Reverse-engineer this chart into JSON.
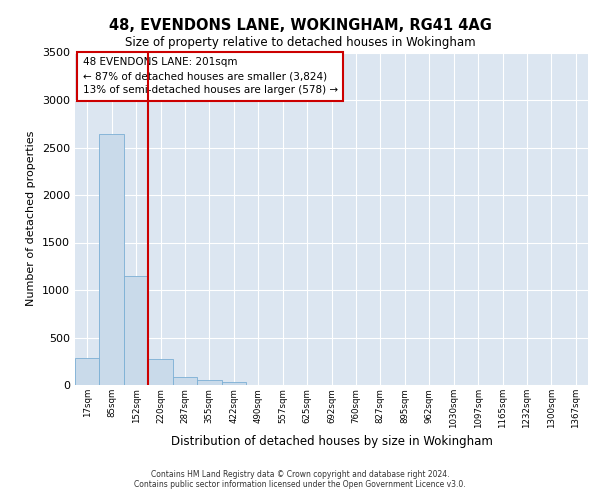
{
  "title": "48, EVENDONS LANE, WOKINGHAM, RG41 4AG",
  "subtitle": "Size of property relative to detached houses in Wokingham",
  "xlabel": "Distribution of detached houses by size in Wokingham",
  "ylabel": "Number of detached properties",
  "categories": [
    "17sqm",
    "85sqm",
    "152sqm",
    "220sqm",
    "287sqm",
    "355sqm",
    "422sqm",
    "490sqm",
    "557sqm",
    "625sqm",
    "692sqm",
    "760sqm",
    "827sqm",
    "895sqm",
    "962sqm",
    "1030sqm",
    "1097sqm",
    "1165sqm",
    "1232sqm",
    "1300sqm",
    "1367sqm"
  ],
  "values": [
    280,
    2640,
    1150,
    275,
    85,
    50,
    30,
    0,
    0,
    0,
    0,
    0,
    0,
    0,
    0,
    0,
    0,
    0,
    0,
    0,
    0
  ],
  "bar_color": "#c9daea",
  "bar_edge_color": "#7bafd4",
  "vline_x": 2.5,
  "vline_color": "#cc0000",
  "annotation_line1": "48 EVENDONS LANE: 201sqm",
  "annotation_line2": "← 87% of detached houses are smaller (3,824)",
  "annotation_line3": "13% of semi-detached houses are larger (578) →",
  "ann_box_facecolor": "white",
  "ann_box_edgecolor": "#cc0000",
  "ylim": [
    0,
    3500
  ],
  "yticks": [
    0,
    500,
    1000,
    1500,
    2000,
    2500,
    3000,
    3500
  ],
  "bg_color": "#dce6f1",
  "grid_color": "white",
  "footer1": "Contains HM Land Registry data © Crown copyright and database right 2024.",
  "footer2": "Contains public sector information licensed under the Open Government Licence v3.0."
}
